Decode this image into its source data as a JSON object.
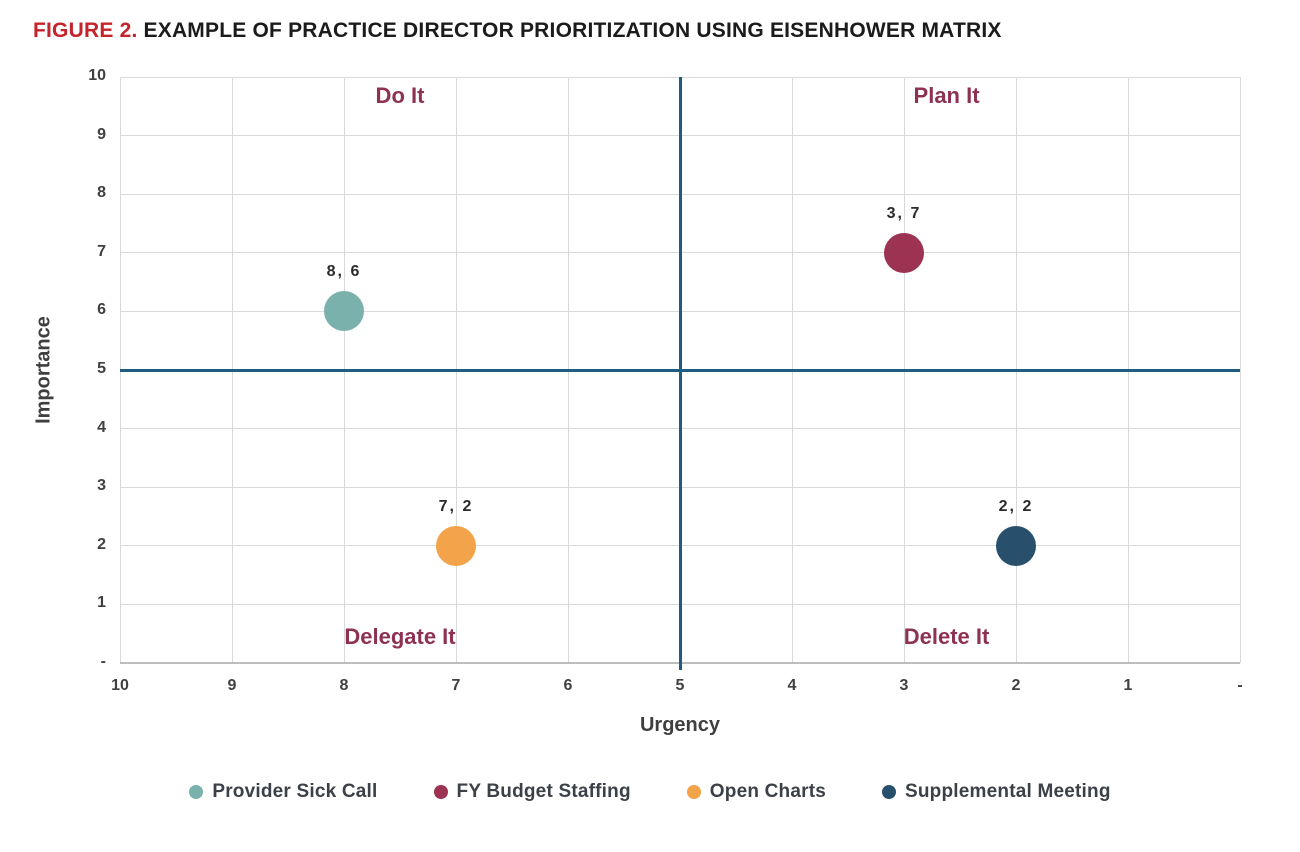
{
  "title": {
    "figure_label": "FIGURE 2.",
    "figure_label_color": "#c5242b",
    "text": "EXAMPLE OF PRACTICE DIRECTOR PRIORITIZATION USING EISENHOWER MATRIX"
  },
  "chart_data": {
    "type": "scatter",
    "xlabel": "Urgency",
    "ylabel": "Importance",
    "xlim": [
      10,
      0
    ],
    "ylim": [
      0,
      10
    ],
    "x_axis_reversed": true,
    "grid": true,
    "grid_color": "#d9d9d9",
    "x_ticks": [
      "10",
      "9",
      "8",
      "7",
      "6",
      "5",
      "4",
      "3",
      "2",
      "1",
      "-"
    ],
    "y_ticks": [
      "10",
      "9",
      "8",
      "7",
      "6",
      "5",
      "4",
      "3",
      "2",
      "1",
      "-"
    ],
    "crosshair": {
      "x": 5,
      "y": 5,
      "color": "#1e5d80"
    },
    "quadrant_label_color": "#8e3253",
    "quadrant_labels": [
      {
        "label": "Do It",
        "x": 7.5,
        "y": 9.68
      },
      {
        "label": "Plan It",
        "x": 2.62,
        "y": 9.68
      },
      {
        "label": "Delegate It",
        "x": 7.5,
        "y": 0.44
      },
      {
        "label": "Delete It",
        "x": 2.62,
        "y": 0.44
      }
    ],
    "series": [
      {
        "name": "Provider Sick Call",
        "x": 8,
        "y": 6,
        "label": "8, 6",
        "color": "#7bb1ac"
      },
      {
        "name": "FY Budget Staffing",
        "x": 3,
        "y": 7,
        "label": "3, 7",
        "color": "#9d3353"
      },
      {
        "name": "Open Charts",
        "x": 7,
        "y": 2,
        "label": "7, 2",
        "color": "#f3a34a"
      },
      {
        "name": "Supplemental Meeting",
        "x": 2,
        "y": 2,
        "label": "2, 2",
        "color": "#28506c"
      }
    ],
    "legend_position": "bottom"
  }
}
